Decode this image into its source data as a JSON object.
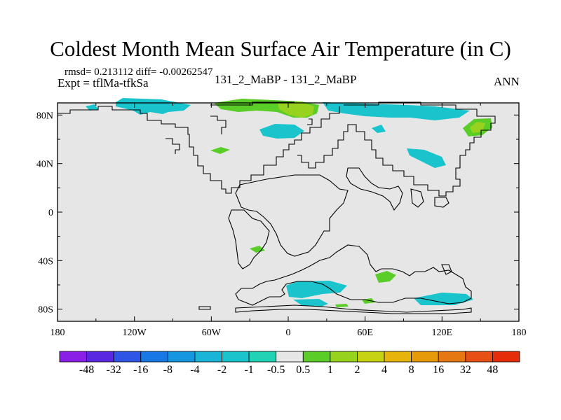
{
  "title": "Coldest Month Mean Surface Air Temperature (in C)",
  "stats": "rmsd= 0.213112 diff= -0.00262547",
  "expt": "Expt = tflMa-tfkSa",
  "runs": "131_2_MaBP - 131_2_MaBP",
  "period": "ANN",
  "chart_data": {
    "type": "heatmap",
    "title": "Coldest Month Mean Surface Air Temperature (in C)",
    "projection": "cylindrical-equidistant",
    "xlim": [
      -180,
      180
    ],
    "ylim": [
      -90,
      90
    ],
    "x_ticks": [
      -180,
      -120,
      -60,
      0,
      60,
      120,
      180
    ],
    "x_tick_labels": [
      "180",
      "120W",
      "60W",
      "0",
      "60E",
      "120E",
      "180"
    ],
    "y_ticks": [
      80,
      40,
      0,
      -40,
      -80
    ],
    "y_tick_labels": [
      "80N",
      "40N",
      "0",
      "40S",
      "80S"
    ],
    "background_value_range": "-0.5 to 0.5",
    "background_color": "#e6e6e6",
    "colorbar": {
      "levels": [
        -48,
        -32,
        -16,
        -8,
        -4,
        -2,
        -1,
        -0.5,
        0.5,
        1,
        2,
        4,
        8,
        16,
        32,
        48
      ],
      "level_labels": [
        "-48",
        "-32",
        "-16",
        "-8",
        "-4",
        "-2",
        "-1",
        "-0.5",
        "0.5",
        "1",
        "2",
        "4",
        "8",
        "16",
        "32",
        "48"
      ],
      "colors": [
        "#8a1fe6",
        "#5a28e0",
        "#2d55e6",
        "#1878e6",
        "#1596de",
        "#19b4d8",
        "#1ac4cc",
        "#22d2b4",
        "#e6e6e6",
        "#5acd28",
        "#96d21e",
        "#c8d214",
        "#e6b40a",
        "#e69a0a",
        "#e67814",
        "#e65014",
        "#e62d0a"
      ]
    },
    "anomaly_regions": [
      {
        "name": "arctic-siberia-north",
        "lon": 5,
        "lat": 79,
        "band": "1 to 2"
      },
      {
        "name": "arctic-siberia-core",
        "lon": 10,
        "lat": 77,
        "band": "2 to 4"
      },
      {
        "name": "arctic-pacific-belt",
        "lon": -125,
        "lat": 78,
        "band": "-1 to -0.5"
      },
      {
        "name": "arctic-atlantic-belt",
        "lon": 55,
        "lat": 76,
        "band": "-1 to -0.5"
      },
      {
        "name": "arctic-beringia",
        "lon": 115,
        "lat": 75,
        "band": "-1 to -0.5"
      },
      {
        "name": "north-atlantic",
        "lon": -15,
        "lat": 62,
        "band": "-1 to -0.5"
      },
      {
        "name": "far-east-russia",
        "lon": 148,
        "lat": 62,
        "band": "1 to 4"
      },
      {
        "name": "north-pacific",
        "lon": 110,
        "lat": 38,
        "band": "-1 to -0.5"
      },
      {
        "name": "western-north-america",
        "lon": -55,
        "lat": 44,
        "band": "0.5 to 1"
      },
      {
        "name": "south-america-south",
        "lon": -25,
        "lat": -35,
        "band": "0.5 to 1"
      },
      {
        "name": "southern-ocean-atlantic",
        "lon": 25,
        "lat": -65,
        "band": "-1 to -0.5"
      },
      {
        "name": "antarctica-coast-east",
        "lon": 71,
        "lat": -54,
        "band": "0.5 to 1"
      },
      {
        "name": "southern-ocean-pacific",
        "lon": 122,
        "lat": -73,
        "band": "-1 to -0.5"
      },
      {
        "name": "antarctica-coast-green",
        "lon": 88,
        "lat": -77,
        "band": "0.5 to 1"
      }
    ]
  }
}
